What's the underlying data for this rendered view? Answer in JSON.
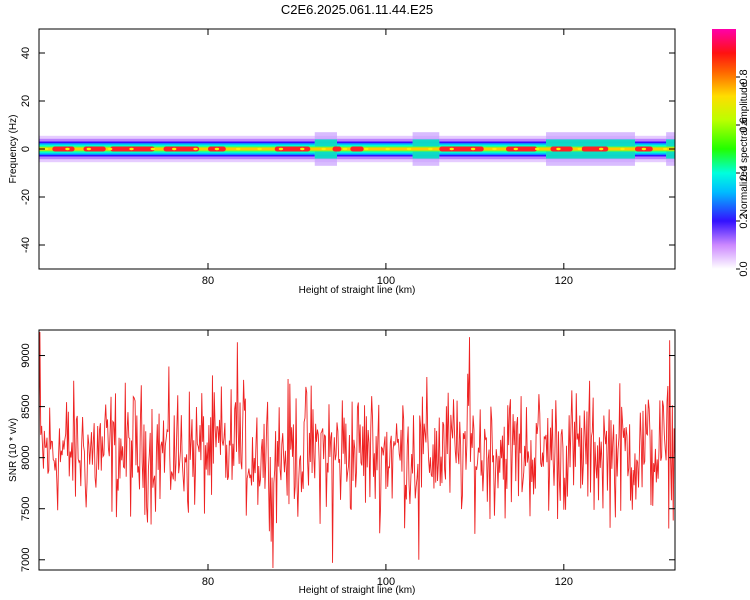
{
  "title": "C2E6.2025.061.11.44.E25",
  "colors": {
    "background": "#ffffff",
    "frame": "#000000",
    "snr_line": "#ee2222"
  },
  "colorbar": {
    "label": "Normalized spectral amplitude",
    "range": [
      0,
      1
    ],
    "ticks": [
      0.0,
      0.2,
      0.4,
      0.6,
      0.8
    ],
    "tick_labels": [
      "0.0",
      "0.2",
      "0.4",
      "0.6",
      "0.8"
    ],
    "colormap": "rainbow (white-violet-blue-cyan-green-yellow-red-magenta)"
  },
  "chart_data": [
    {
      "type": "heatmap",
      "name": "spectrogram",
      "title": "C2E6.2025.061.11.44.E25",
      "xlabel": "Height of straight line (km)",
      "ylabel": "Frequency (Hz)",
      "xlim": [
        61,
        132.5
      ],
      "ylim": [
        -50,
        50
      ],
      "x_ticks": [
        80,
        100,
        120
      ],
      "y_ticks": [
        -40,
        -20,
        0,
        20,
        40
      ],
      "band_center_hz": 0,
      "band_halfwidth_hz": 5,
      "core_amplitude": 0.9,
      "core_segments_km": [
        [
          62.5,
          65
        ],
        [
          66,
          68.5
        ],
        [
          69,
          74
        ],
        [
          75,
          79
        ],
        [
          80,
          82
        ],
        [
          87.5,
          91.5
        ],
        [
          94,
          95
        ],
        [
          96,
          97.5
        ],
        [
          106,
          111
        ],
        [
          113.5,
          117
        ],
        [
          118.5,
          121
        ],
        [
          122,
          125
        ],
        [
          128,
          130
        ]
      ],
      "wide_regions_km": [
        [
          92,
          94.5
        ],
        [
          103,
          106
        ],
        [
          118,
          128
        ],
        [
          131.5,
          132.5
        ]
      ]
    },
    {
      "type": "line",
      "name": "snr",
      "xlabel": "Height of straight line (km)",
      "ylabel": "SNR (10 * v/v)",
      "xlim": [
        61,
        132.5
      ],
      "ylim": [
        6900,
        9250
      ],
      "x_ticks": [
        80,
        100,
        120
      ],
      "y_ticks": [
        7000,
        7500,
        8000,
        8500,
        9000
      ],
      "x_step_km": 0.1,
      "y_mean": 8060,
      "y_typical_range": [
        7300,
        8700
      ],
      "y_observed_min": 6920,
      "y_observed_max": 9230,
      "peaks": [
        {
          "x": 61.1,
          "y": 9230
        },
        {
          "x": 83.3,
          "y": 9130
        },
        {
          "x": 109.4,
          "y": 9180
        },
        {
          "x": 131.9,
          "y": 9150
        }
      ],
      "troughs": [
        {
          "x": 87.3,
          "y": 6920
        },
        {
          "x": 94.0,
          "y": 6970
        },
        {
          "x": 103.7,
          "y": 7000
        }
      ]
    }
  ]
}
